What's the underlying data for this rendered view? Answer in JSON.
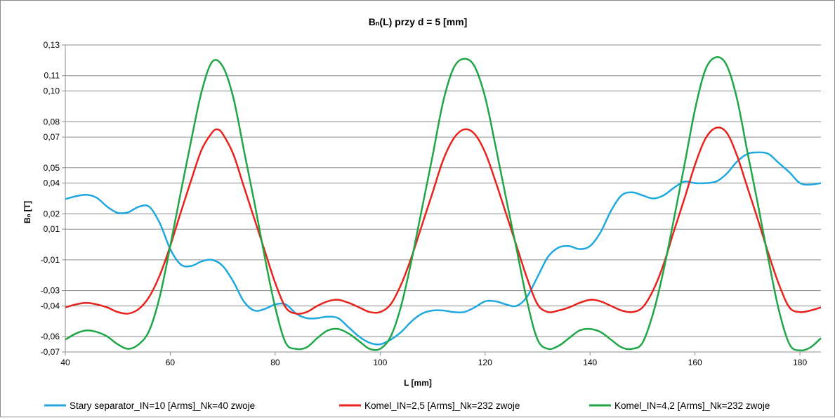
{
  "chart_data": {
    "type": "line",
    "title": "Bₙ(L)  przy  d = 5 [mm]",
    "xlabel": "L [mm]",
    "ylabel": "Bₙ [T]",
    "xlim": [
      40,
      184
    ],
    "ylim": [
      -0.07,
      0.13
    ],
    "x_ticks": [
      40,
      60,
      80,
      100,
      120,
      140,
      160,
      180
    ],
    "y_ticks": [
      -0.07,
      -0.06,
      -0.04,
      -0.03,
      -0.01,
      0.01,
      0.02,
      0.04,
      0.05,
      0.07,
      0.08,
      0.1,
      0.11,
      0.13
    ],
    "y_tick_labels": [
      "-0,07",
      "-0,06",
      "-0,04",
      "-0,03",
      "-0,01",
      "0,01",
      "0,02",
      "0,04",
      "0,05",
      "0,07",
      "0,08",
      "0,10",
      "0,11",
      "0,13"
    ],
    "grid": "horizontal",
    "legend_position": "bottom",
    "series": [
      {
        "name": "Stary separator_IN=10 [Arms]_Nk=40 zwoje",
        "color": "#1fa8e0",
        "points": [
          [
            40,
            0.0296
          ],
          [
            42,
            0.0314
          ],
          [
            44,
            0.0324
          ],
          [
            46,
            0.0304
          ],
          [
            48,
            0.0246
          ],
          [
            50,
            0.0206
          ],
          [
            52,
            0.021
          ],
          [
            54,
            0.0246
          ],
          [
            56,
            0.0246
          ],
          [
            58,
            0.014
          ],
          [
            60,
            -0.003
          ],
          [
            62,
            -0.013
          ],
          [
            64,
            -0.014
          ],
          [
            66,
            -0.011
          ],
          [
            68,
            -0.01
          ],
          [
            70,
            -0.014
          ],
          [
            72,
            -0.024
          ],
          [
            74,
            -0.037
          ],
          [
            76,
            -0.043
          ],
          [
            78,
            -0.042
          ],
          [
            80,
            -0.039
          ],
          [
            82,
            -0.039
          ],
          [
            84,
            -0.045
          ],
          [
            86,
            -0.048
          ],
          [
            88,
            -0.048
          ],
          [
            90,
            -0.047
          ],
          [
            92,
            -0.048
          ],
          [
            94,
            -0.054
          ],
          [
            96,
            -0.06
          ],
          [
            98,
            -0.064
          ],
          [
            100,
            -0.065
          ],
          [
            102,
            -0.062
          ],
          [
            104,
            -0.057
          ],
          [
            106,
            -0.05
          ],
          [
            108,
            -0.045
          ],
          [
            110,
            -0.043
          ],
          [
            112,
            -0.043
          ],
          [
            114,
            -0.044
          ],
          [
            116,
            -0.044
          ],
          [
            118,
            -0.041
          ],
          [
            120,
            -0.037
          ],
          [
            122,
            -0.037
          ],
          [
            124,
            -0.039
          ],
          [
            126,
            -0.04
          ],
          [
            128,
            -0.034
          ],
          [
            130,
            -0.021
          ],
          [
            132,
            -0.008
          ],
          [
            134,
            -0.002
          ],
          [
            136,
            -0.001
          ],
          [
            138,
            -0.003
          ],
          [
            140,
            -0.001
          ],
          [
            142,
            0.008
          ],
          [
            144,
            0.022
          ],
          [
            146,
            0.032
          ],
          [
            148,
            0.034
          ],
          [
            150,
            0.032
          ],
          [
            152,
            0.03
          ],
          [
            154,
            0.032
          ],
          [
            156,
            0.037
          ],
          [
            158,
            0.041
          ],
          [
            160,
            0.04
          ],
          [
            162,
            0.04
          ],
          [
            164,
            0.041
          ],
          [
            166,
            0.046
          ],
          [
            168,
            0.054
          ],
          [
            170,
            0.059
          ],
          [
            172,
            0.06
          ],
          [
            174,
            0.059
          ],
          [
            176,
            0.053
          ],
          [
            178,
            0.047
          ],
          [
            180,
            0.04
          ],
          [
            182,
            0.039
          ],
          [
            184,
            0.04
          ]
        ]
      },
      {
        "name": "Komel_IN=2,5 [Arms]_Nk=232 zwoje",
        "color": "#e8221d",
        "points": [
          [
            40,
            -0.041
          ],
          [
            42,
            -0.039
          ],
          [
            44,
            -0.038
          ],
          [
            46,
            -0.039
          ],
          [
            48,
            -0.041
          ],
          [
            50,
            -0.044
          ],
          [
            52,
            -0.045
          ],
          [
            54,
            -0.042
          ],
          [
            56,
            -0.034
          ],
          [
            58,
            -0.02
          ],
          [
            60,
            -0.001
          ],
          [
            62,
            0.021
          ],
          [
            64,
            0.042
          ],
          [
            66,
            0.062
          ],
          [
            68,
            0.073
          ],
          [
            69,
            0.075
          ],
          [
            70,
            0.072
          ],
          [
            72,
            0.059
          ],
          [
            74,
            0.038
          ],
          [
            76,
            0.017
          ],
          [
            78,
            -0.004
          ],
          [
            80,
            -0.025
          ],
          [
            82,
            -0.041
          ],
          [
            84,
            -0.045
          ],
          [
            86,
            -0.044
          ],
          [
            88,
            -0.04
          ],
          [
            90,
            -0.037
          ],
          [
            92,
            -0.036
          ],
          [
            94,
            -0.038
          ],
          [
            96,
            -0.041
          ],
          [
            98,
            -0.044
          ],
          [
            100,
            -0.044
          ],
          [
            102,
            -0.039
          ],
          [
            104,
            -0.026
          ],
          [
            106,
            -0.008
          ],
          [
            108,
            0.013
          ],
          [
            110,
            0.034
          ],
          [
            112,
            0.055
          ],
          [
            114,
            0.069
          ],
          [
            116,
            0.075
          ],
          [
            118,
            0.072
          ],
          [
            120,
            0.06
          ],
          [
            122,
            0.041
          ],
          [
            124,
            0.02
          ],
          [
            126,
            -0.001
          ],
          [
            128,
            -0.022
          ],
          [
            130,
            -0.039
          ],
          [
            132,
            -0.044
          ],
          [
            134,
            -0.043
          ],
          [
            136,
            -0.041
          ],
          [
            138,
            -0.038
          ],
          [
            140,
            -0.036
          ],
          [
            142,
            -0.037
          ],
          [
            144,
            -0.04
          ],
          [
            146,
            -0.043
          ],
          [
            148,
            -0.044
          ],
          [
            150,
            -0.041
          ],
          [
            152,
            -0.03
          ],
          [
            154,
            -0.013
          ],
          [
            156,
            0.009
          ],
          [
            158,
            0.03
          ],
          [
            160,
            0.052
          ],
          [
            162,
            0.069
          ],
          [
            164,
            0.076
          ],
          [
            166,
            0.073
          ],
          [
            168,
            0.058
          ],
          [
            170,
            0.037
          ],
          [
            172,
            0.016
          ],
          [
            174,
            -0.006
          ],
          [
            176,
            -0.026
          ],
          [
            178,
            -0.041
          ],
          [
            180,
            -0.044
          ],
          [
            182,
            -0.043
          ],
          [
            184,
            -0.041
          ]
        ]
      },
      {
        "name": "Komel_IN=4,2 [Arms]_Nk=232 zwoje",
        "color": "#1fa646",
        "points": [
          [
            40,
            -0.062
          ],
          [
            42,
            -0.058
          ],
          [
            44,
            -0.056
          ],
          [
            46,
            -0.057
          ],
          [
            48,
            -0.06
          ],
          [
            50,
            -0.065
          ],
          [
            52,
            -0.068
          ],
          [
            54,
            -0.065
          ],
          [
            56,
            -0.056
          ],
          [
            58,
            -0.034
          ],
          [
            60,
            -0.001
          ],
          [
            62,
            0.034
          ],
          [
            64,
            0.068
          ],
          [
            66,
            0.1
          ],
          [
            68,
            0.119
          ],
          [
            70,
            0.116
          ],
          [
            72,
            0.096
          ],
          [
            74,
            0.062
          ],
          [
            76,
            0.028
          ],
          [
            78,
            -0.008
          ],
          [
            80,
            -0.041
          ],
          [
            82,
            -0.064
          ],
          [
            84,
            -0.068
          ],
          [
            86,
            -0.067
          ],
          [
            88,
            -0.061
          ],
          [
            90,
            -0.056
          ],
          [
            92,
            -0.055
          ],
          [
            94,
            -0.058
          ],
          [
            96,
            -0.063
          ],
          [
            98,
            -0.068
          ],
          [
            100,
            -0.068
          ],
          [
            102,
            -0.06
          ],
          [
            104,
            -0.04
          ],
          [
            106,
            -0.01
          ],
          [
            108,
            0.024
          ],
          [
            110,
            0.058
          ],
          [
            112,
            0.093
          ],
          [
            114,
            0.115
          ],
          [
            116,
            0.121
          ],
          [
            118,
            0.116
          ],
          [
            120,
            0.096
          ],
          [
            122,
            0.064
          ],
          [
            124,
            0.03
          ],
          [
            126,
            -0.003
          ],
          [
            128,
            -0.037
          ],
          [
            130,
            -0.062
          ],
          [
            132,
            -0.068
          ],
          [
            134,
            -0.066
          ],
          [
            136,
            -0.061
          ],
          [
            138,
            -0.056
          ],
          [
            140,
            -0.055
          ],
          [
            142,
            -0.057
          ],
          [
            144,
            -0.062
          ],
          [
            146,
            -0.067
          ],
          [
            148,
            -0.068
          ],
          [
            150,
            -0.064
          ],
          [
            152,
            -0.045
          ],
          [
            154,
            -0.017
          ],
          [
            156,
            0.017
          ],
          [
            158,
            0.052
          ],
          [
            160,
            0.088
          ],
          [
            162,
            0.114
          ],
          [
            164,
            0.122
          ],
          [
            166,
            0.117
          ],
          [
            168,
            0.095
          ],
          [
            170,
            0.06
          ],
          [
            172,
            0.026
          ],
          [
            174,
            -0.01
          ],
          [
            176,
            -0.043
          ],
          [
            178,
            -0.065
          ],
          [
            180,
            -0.069
          ],
          [
            182,
            -0.067
          ],
          [
            184,
            -0.061
          ]
        ]
      }
    ]
  }
}
